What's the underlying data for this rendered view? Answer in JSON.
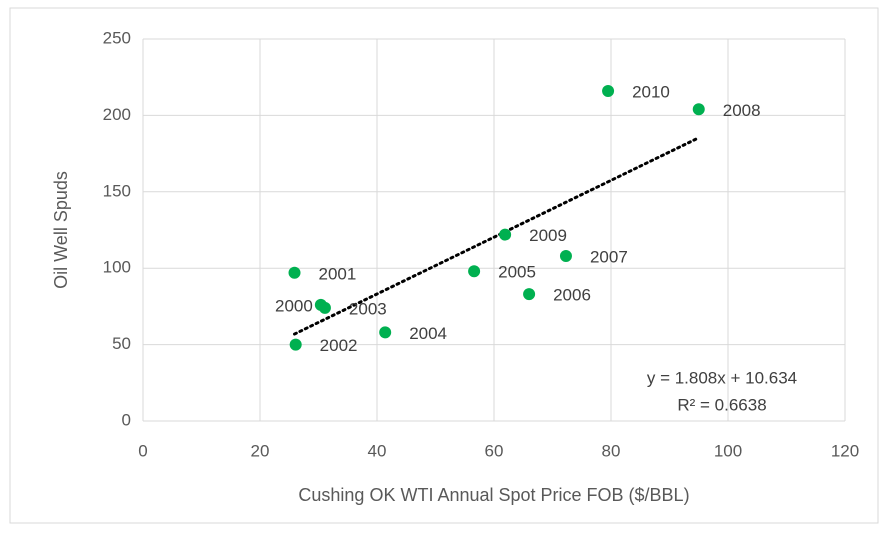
{
  "chart_data": {
    "type": "scatter",
    "x_label": "Cushing OK WTI Annual Spot Price FOB ($/BBL)",
    "y_label": "Oil Well Spuds",
    "point_labels": [
      "2000",
      "2001",
      "2002",
      "2003",
      "2004",
      "2005",
      "2006",
      "2007",
      "2008",
      "2009",
      "2010"
    ],
    "x": [
      30.4,
      25.9,
      26.1,
      31.1,
      41.4,
      56.6,
      66.0,
      72.3,
      95,
      61.9,
      79.5
    ],
    "values": [
      76,
      97,
      50,
      74,
      58,
      98,
      83,
      108,
      204,
      122,
      216
    ],
    "color": "#00b050",
    "trendline": "linear",
    "annotations": [
      "y = 1.808x + 10.634",
      "R² = 0.6638"
    ],
    "xlim": [
      0,
      120
    ],
    "xticks": [
      0,
      20,
      40,
      60,
      80,
      100,
      120
    ],
    "ylim": [
      0,
      250
    ],
    "yticks": [
      0,
      50,
      100,
      150,
      200,
      250
    ],
    "grid": true
  }
}
